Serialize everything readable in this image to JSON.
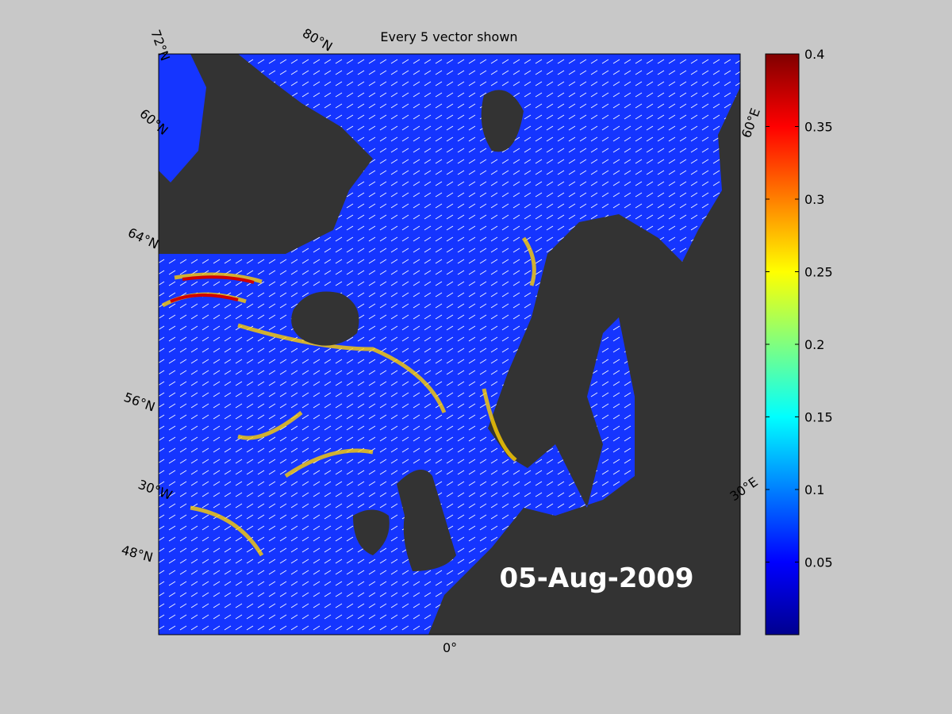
{
  "title": "Every 5 vector shown",
  "date_label": "05-Aug-2009",
  "graticule_labels": [
    "72°N",
    "80°N",
    "60°N",
    "64°N",
    "56°N",
    "30°W",
    "48°N",
    "0°",
    "30°E",
    "60°E"
  ],
  "colorbar": {
    "lim": [
      0,
      0.4
    ],
    "ticks": [
      0.05,
      0.1,
      0.15,
      0.2,
      0.25,
      0.3,
      0.35,
      0.4
    ]
  }
}
